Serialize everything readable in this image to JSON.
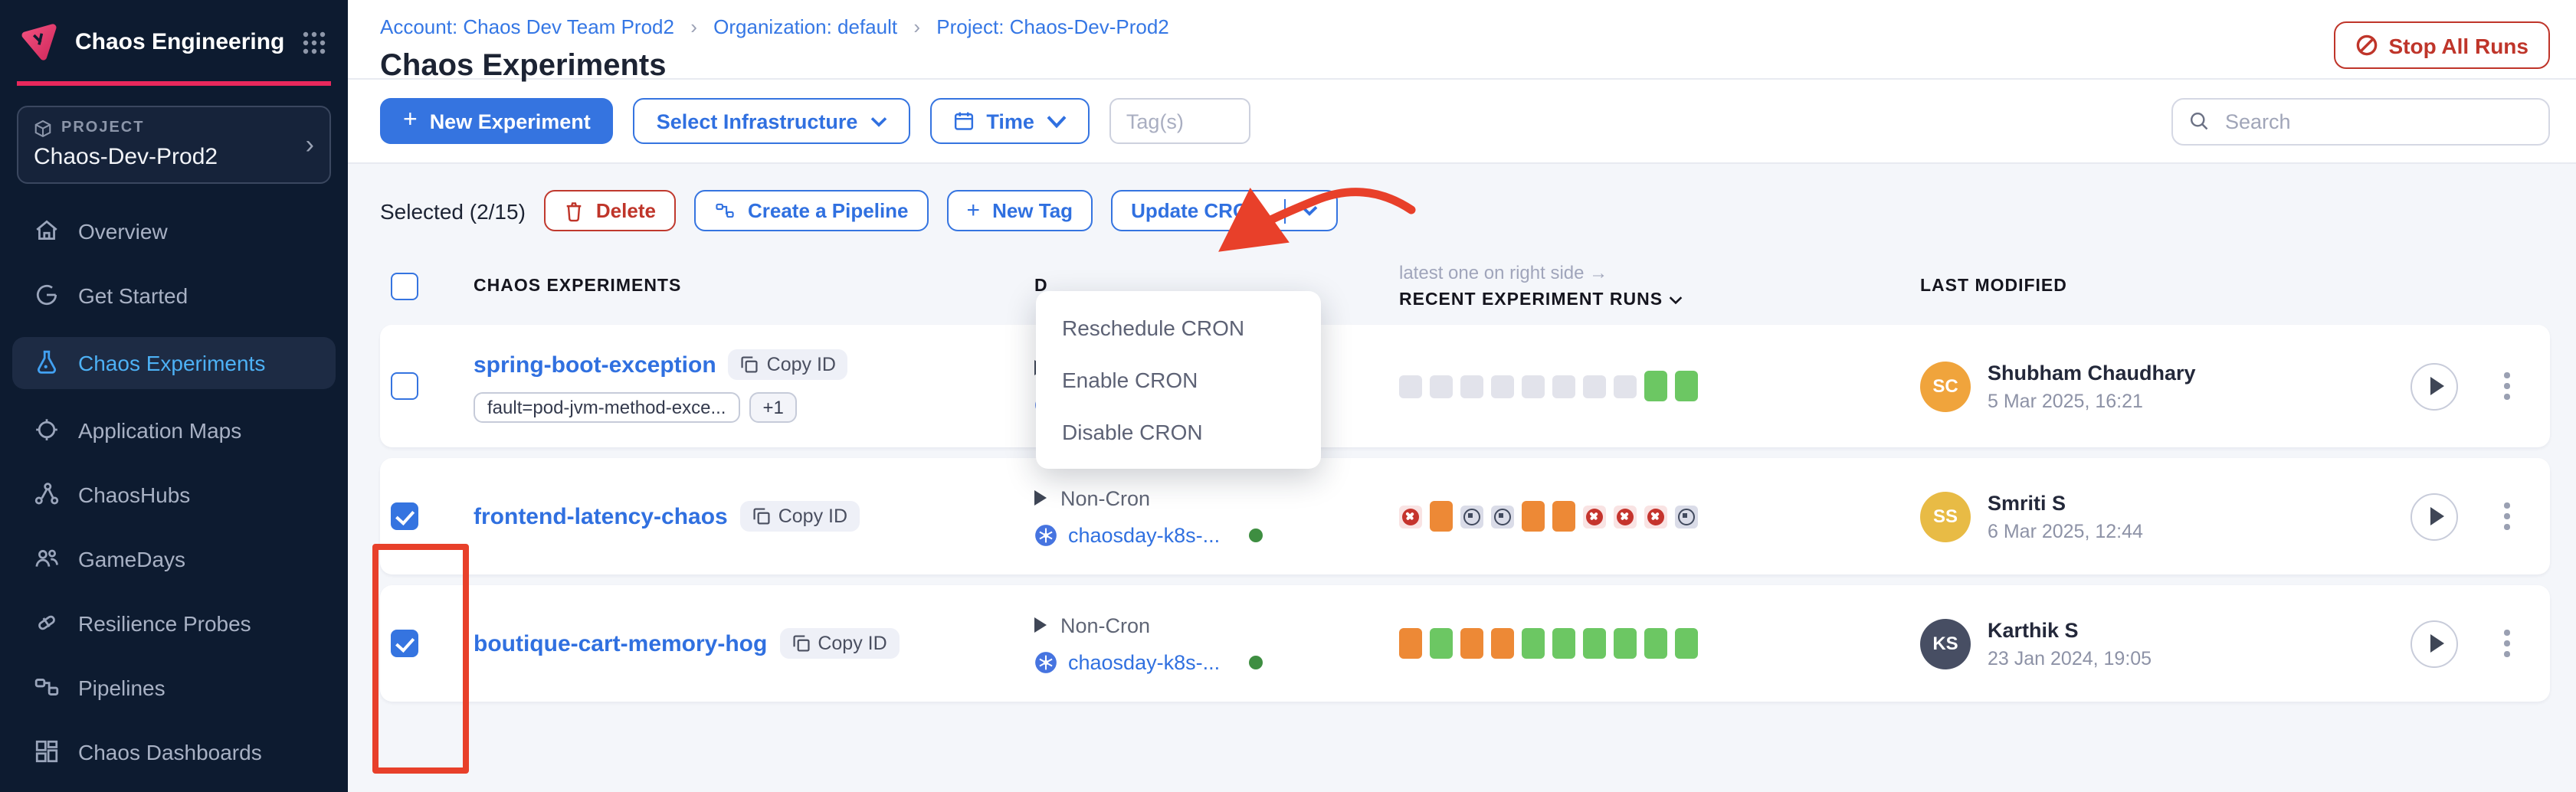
{
  "app": {
    "name": "Chaos Engineering",
    "project_label": "PROJECT",
    "project_name": "Chaos-Dev-Prod2"
  },
  "sidebar": {
    "items": [
      {
        "label": "Overview"
      },
      {
        "label": "Get Started"
      },
      {
        "label": "Chaos Experiments",
        "active": true
      },
      {
        "label": "Application Maps"
      },
      {
        "label": "ChaosHubs"
      },
      {
        "label": "GameDays"
      },
      {
        "label": "Resilience Probes"
      },
      {
        "label": "Pipelines"
      },
      {
        "label": "Chaos Dashboards"
      }
    ]
  },
  "header": {
    "breadcrumb": [
      {
        "label": "Account: Chaos Dev Team Prod2"
      },
      {
        "label": "Organization: default"
      },
      {
        "label": "Project: Chaos-Dev-Prod2"
      }
    ],
    "title": "Chaos Experiments",
    "stop_all_runs_label": "Stop All Runs"
  },
  "toolbar": {
    "new_experiment_label": "New Experiment",
    "select_infrastructure_label": "Select Infrastructure",
    "time_label": "Time",
    "tags_placeholder": "Tag(s)",
    "search_placeholder": "Search"
  },
  "actions": {
    "selected_label": "Selected (2/15)",
    "delete_label": "Delete",
    "create_pipeline_label": "Create a Pipeline",
    "new_tag_label": "New Tag",
    "update_cron_label": "Update CRON",
    "dropdown_items": [
      {
        "label": "Reschedule CRON"
      },
      {
        "label": "Enable CRON"
      },
      {
        "label": "Disable CRON"
      }
    ]
  },
  "table": {
    "headers": {
      "experiments": "CHAOS EXPERIMENTS",
      "details_partial": "D",
      "runs_hint": "latest one on right side →",
      "recent_runs": "RECENT EXPERIMENT RUNS",
      "last_modified": "LAST MODIFIED"
    },
    "rows": [
      {
        "checked": false,
        "name": "spring-boot-exception",
        "copy_id_label": "Copy ID",
        "tags": {
          "tag1": "fault=pod-jvm-method-exce...",
          "more": "+1"
        },
        "schedule": "Non-Cron",
        "infra": "springboot",
        "runs": [
          "empty",
          "empty",
          "empty",
          "empty",
          "empty",
          "empty",
          "empty",
          "empty",
          "green",
          "green"
        ],
        "modified": {
          "initials": "SC",
          "name": "Shubham Chaudhary",
          "date": "5 Mar 2025, 16:21",
          "avatar_color": "#f0a43c"
        }
      },
      {
        "checked": true,
        "name": "frontend-latency-chaos",
        "copy_id_label": "Copy ID",
        "schedule": "Non-Cron",
        "infra": "chaosday-k8s-...",
        "runs": [
          "failed",
          "orange",
          "stopped",
          "stopped",
          "orange",
          "orange",
          "failed",
          "failed",
          "failed",
          "stopped"
        ],
        "modified": {
          "initials": "SS",
          "name": "Smriti S",
          "date": "6 Mar 2025, 12:44",
          "avatar_color": "#e8bb45"
        }
      },
      {
        "checked": true,
        "name": "boutique-cart-memory-hog",
        "copy_id_label": "Copy ID",
        "schedule": "Non-Cron",
        "infra": "chaosday-k8s-...",
        "runs": [
          "orange",
          "green",
          "orange",
          "orange",
          "green",
          "green",
          "green",
          "green",
          "green",
          "green"
        ],
        "modified": {
          "initials": "KS",
          "name": "Karthik S",
          "date": "23 Jan 2024, 19:05",
          "avatar_color": "#474e63"
        }
      }
    ]
  },
  "colors": {
    "accent_blue": "#3574e0",
    "danger_red": "#bf352a",
    "annotation_red": "#e8402a",
    "run_green": "#6cc763",
    "run_orange": "#ed8936",
    "sidebar_bg": "#0d1b30",
    "brand_pink": "#e8285c",
    "active_nav_blue": "#4db1f5"
  }
}
